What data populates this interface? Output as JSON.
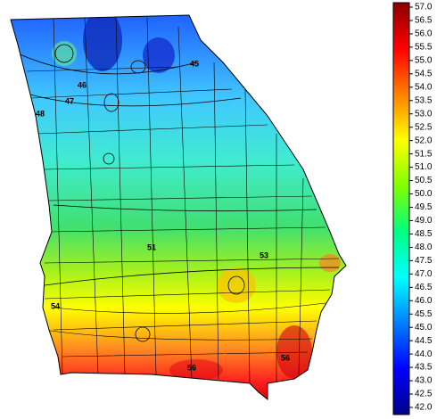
{
  "map": {
    "contour_labels": [
      "45",
      "46",
      "47",
      "48",
      "51",
      "53",
      "54",
      "56",
      "56"
    ],
    "colorbar": {
      "range": [
        42,
        57
      ],
      "colors": [
        "#00008b",
        "#0000ff",
        "#0080ff",
        "#00ffff",
        "#00ff80",
        "#80ff00",
        "#ffff00",
        "#ff8000",
        "#ff0000",
        "#8b0000"
      ],
      "ticks": [
        {
          "value": 42,
          "label": "42.0"
        },
        {
          "value": 42.5,
          "label": "42.5"
        },
        {
          "value": 43,
          "label": "43.0"
        },
        {
          "value": 43.5,
          "label": "43.5"
        },
        {
          "value": 44,
          "label": "44.0"
        },
        {
          "value": 44.5,
          "label": "44.5"
        },
        {
          "value": 45,
          "label": "45.0"
        },
        {
          "value": 45.5,
          "label": "45.5"
        },
        {
          "value": 46,
          "label": "46.0"
        },
        {
          "value": 46.5,
          "label": "46.5"
        },
        {
          "value": 47,
          "label": "47.0"
        },
        {
          "value": 47.5,
          "label": "47.5"
        },
        {
          "value": 48,
          "label": "48.0"
        },
        {
          "value": 48.5,
          "label": "48.5"
        },
        {
          "value": 49,
          "label": "49.0"
        },
        {
          "value": 49.5,
          "label": "49.5"
        },
        {
          "value": 50,
          "label": "50.0"
        },
        {
          "value": 50.5,
          "label": "50.5"
        },
        {
          "value": 51,
          "label": "51.0"
        },
        {
          "value": 51.5,
          "label": "51.5"
        },
        {
          "value": 52,
          "label": "52.0"
        },
        {
          "value": 52.5,
          "label": "52.5"
        },
        {
          "value": 53,
          "label": "53.0"
        },
        {
          "value": 53.5,
          "label": "53.5"
        },
        {
          "value": 54,
          "label": "54.0"
        },
        {
          "value": 54.5,
          "label": "54.5"
        },
        {
          "value": 55,
          "label": "55.0"
        },
        {
          "value": 55.5,
          "label": "55.5"
        },
        {
          "value": 56,
          "label": "56.0"
        },
        {
          "value": 56.5,
          "label": "56.5"
        },
        {
          "value": 57,
          "label": "57.0"
        }
      ]
    }
  }
}
